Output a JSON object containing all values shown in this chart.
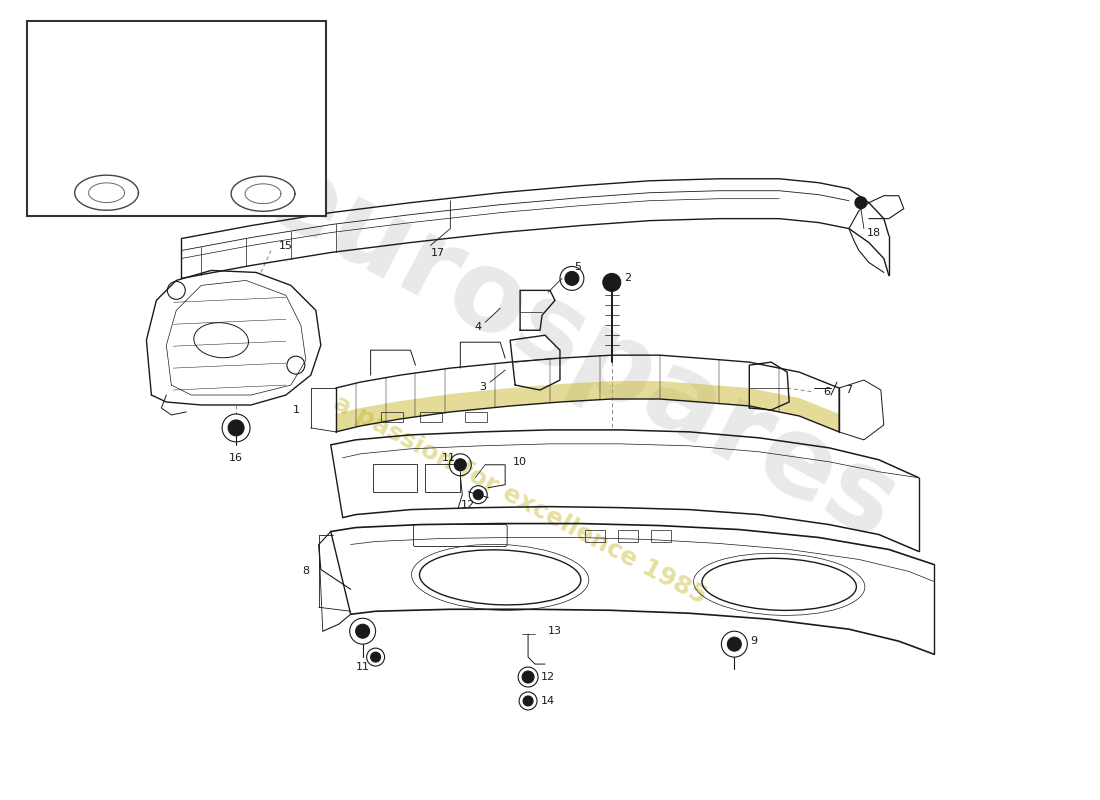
{
  "background_color": "#ffffff",
  "line_color": "#1a1a1a",
  "lw": 1.0,
  "watermark_color_gray": "#cccccc",
  "watermark_color_yellow": "#d4c060",
  "label_fontsize": 8.5
}
